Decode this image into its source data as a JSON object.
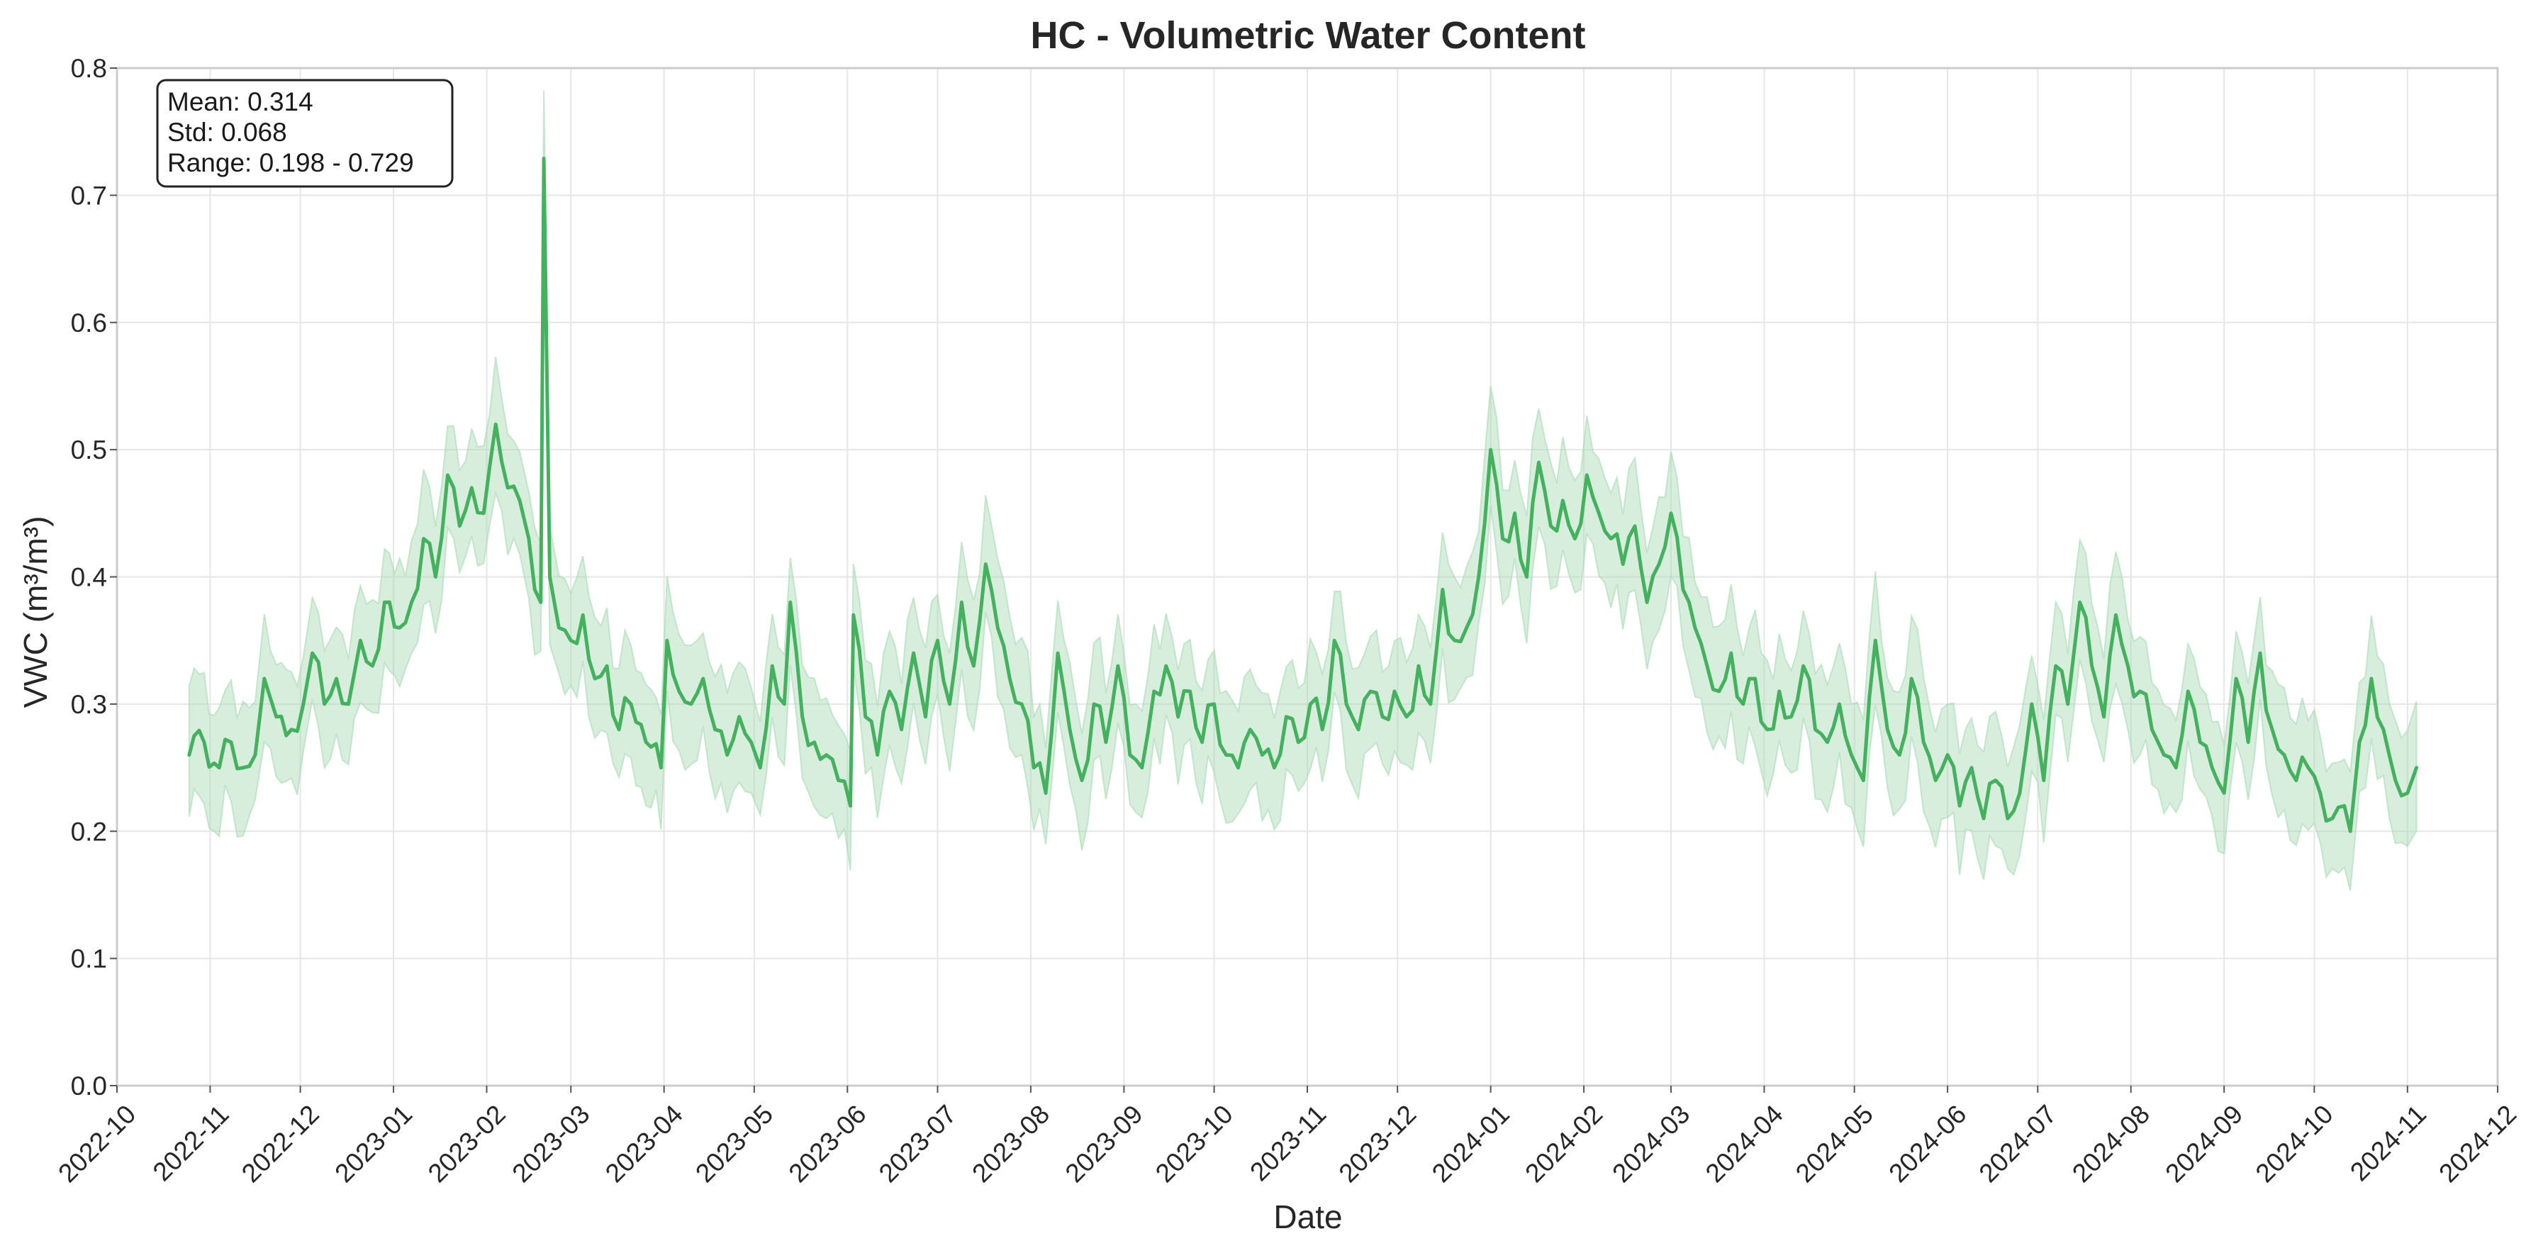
{
  "chart_data": {
    "type": "line",
    "title": "HC - Volumetric Water Content",
    "xlabel": "Date",
    "ylabel": "VWC (m³/m³)",
    "ylim": [
      0.0,
      0.8
    ],
    "xlim": [
      "2022-10-01",
      "2024-12-01"
    ],
    "grid": true,
    "y_ticks": [
      "0.0",
      "0.1",
      "0.2",
      "0.3",
      "0.4",
      "0.5",
      "0.6",
      "0.7",
      "0.8"
    ],
    "x_ticks": [
      "2022-10",
      "2022-11",
      "2022-12",
      "2023-01",
      "2023-02",
      "2023-03",
      "2023-04",
      "2023-05",
      "2023-06",
      "2023-07",
      "2023-08",
      "2023-09",
      "2023-10",
      "2023-11",
      "2023-12",
      "2024-01",
      "2024-02",
      "2024-03",
      "2024-04",
      "2024-05",
      "2024-06",
      "2024-07",
      "2024-08",
      "2024-09",
      "2024-10",
      "2024-11",
      "2024-12"
    ],
    "stats_box": [
      "Mean: 0.314",
      "Std: 0.068",
      "Range: 0.198 - 0.729"
    ],
    "colors": {
      "line": "#44b15f",
      "band": "#a6dab4",
      "band_opacity": 0.45
    },
    "series": [
      {
        "values": [
          [
            "2022-10-25",
            0.26
          ],
          [
            "2022-10-30",
            0.27
          ],
          [
            "2022-11-04",
            0.25
          ],
          [
            "2022-11-08",
            0.27
          ],
          [
            "2022-11-12",
            0.25
          ],
          [
            "2022-11-16",
            0.26
          ],
          [
            "2022-11-19",
            0.32
          ],
          [
            "2022-11-23",
            0.29
          ],
          [
            "2022-11-28",
            0.28
          ],
          [
            "2022-12-02",
            0.3
          ],
          [
            "2022-12-05",
            0.34
          ],
          [
            "2022-12-09",
            0.3
          ],
          [
            "2022-12-13",
            0.32
          ],
          [
            "2022-12-17",
            0.3
          ],
          [
            "2022-12-21",
            0.35
          ],
          [
            "2022-12-25",
            0.33
          ],
          [
            "2022-12-29",
            0.38
          ],
          [
            "2023-01-03",
            0.36
          ],
          [
            "2023-01-07",
            0.38
          ],
          [
            "2023-01-11",
            0.43
          ],
          [
            "2023-01-15",
            0.4
          ],
          [
            "2023-01-19",
            0.48
          ],
          [
            "2023-01-23",
            0.44
          ],
          [
            "2023-01-27",
            0.47
          ],
          [
            "2023-01-31",
            0.45
          ],
          [
            "2023-02-04",
            0.52
          ],
          [
            "2023-02-08",
            0.47
          ],
          [
            "2023-02-12",
            0.46
          ],
          [
            "2023-02-15",
            0.43
          ],
          [
            "2023-02-17",
            0.39
          ],
          [
            "2023-02-19",
            0.38
          ],
          [
            "2023-02-20",
            0.729
          ],
          [
            "2023-02-22",
            0.4
          ],
          [
            "2023-02-25",
            0.36
          ],
          [
            "2023-03-01",
            0.35
          ],
          [
            "2023-03-05",
            0.37
          ],
          [
            "2023-03-09",
            0.32
          ],
          [
            "2023-03-13",
            0.33
          ],
          [
            "2023-03-17",
            0.28
          ],
          [
            "2023-03-21",
            0.3
          ],
          [
            "2023-03-26",
            0.27
          ],
          [
            "2023-03-31",
            0.25
          ],
          [
            "2023-04-02",
            0.35
          ],
          [
            "2023-04-06",
            0.31
          ],
          [
            "2023-04-10",
            0.3
          ],
          [
            "2023-04-14",
            0.32
          ],
          [
            "2023-04-18",
            0.28
          ],
          [
            "2023-04-22",
            0.26
          ],
          [
            "2023-04-26",
            0.29
          ],
          [
            "2023-04-30",
            0.27
          ],
          [
            "2023-05-03",
            0.25
          ],
          [
            "2023-05-07",
            0.33
          ],
          [
            "2023-05-11",
            0.3
          ],
          [
            "2023-05-13",
            0.38
          ],
          [
            "2023-05-17",
            0.29
          ],
          [
            "2023-05-21",
            0.27
          ],
          [
            "2023-05-25",
            0.26
          ],
          [
            "2023-05-29",
            0.24
          ],
          [
            "2023-06-02",
            0.22
          ],
          [
            "2023-06-03",
            0.37
          ],
          [
            "2023-06-07",
            0.29
          ],
          [
            "2023-06-11",
            0.26
          ],
          [
            "2023-06-15",
            0.31
          ],
          [
            "2023-06-19",
            0.28
          ],
          [
            "2023-06-23",
            0.34
          ],
          [
            "2023-06-27",
            0.29
          ],
          [
            "2023-07-01",
            0.35
          ],
          [
            "2023-07-05",
            0.3
          ],
          [
            "2023-07-09",
            0.38
          ],
          [
            "2023-07-13",
            0.33
          ],
          [
            "2023-07-17",
            0.41
          ],
          [
            "2023-07-21",
            0.36
          ],
          [
            "2023-07-25",
            0.32
          ],
          [
            "2023-07-29",
            0.3
          ],
          [
            "2023-08-02",
            0.25
          ],
          [
            "2023-08-06",
            0.23
          ],
          [
            "2023-08-10",
            0.34
          ],
          [
            "2023-08-14",
            0.28
          ],
          [
            "2023-08-18",
            0.24
          ],
          [
            "2023-08-22",
            0.3
          ],
          [
            "2023-08-26",
            0.27
          ],
          [
            "2023-08-30",
            0.33
          ],
          [
            "2023-09-03",
            0.26
          ],
          [
            "2023-09-07",
            0.25
          ],
          [
            "2023-09-11",
            0.31
          ],
          [
            "2023-09-15",
            0.33
          ],
          [
            "2023-09-19",
            0.29
          ],
          [
            "2023-09-23",
            0.31
          ],
          [
            "2023-09-27",
            0.27
          ],
          [
            "2023-10-01",
            0.3
          ],
          [
            "2023-10-05",
            0.26
          ],
          [
            "2023-10-09",
            0.25
          ],
          [
            "2023-10-13",
            0.28
          ],
          [
            "2023-10-17",
            0.26
          ],
          [
            "2023-10-21",
            0.25
          ],
          [
            "2023-10-25",
            0.29
          ],
          [
            "2023-10-29",
            0.27
          ],
          [
            "2023-11-02",
            0.3
          ],
          [
            "2023-11-06",
            0.28
          ],
          [
            "2023-11-10",
            0.35
          ],
          [
            "2023-11-14",
            0.3
          ],
          [
            "2023-11-18",
            0.28
          ],
          [
            "2023-11-22",
            0.31
          ],
          [
            "2023-11-26",
            0.29
          ],
          [
            "2023-11-30",
            0.31
          ],
          [
            "2023-12-04",
            0.29
          ],
          [
            "2023-12-08",
            0.33
          ],
          [
            "2023-12-12",
            0.3
          ],
          [
            "2023-12-16",
            0.39
          ],
          [
            "2023-12-20",
            0.35
          ],
          [
            "2023-12-24",
            0.36
          ],
          [
            "2023-12-28",
            0.4
          ],
          [
            "2024-01-01",
            0.5
          ],
          [
            "2024-01-05",
            0.43
          ],
          [
            "2024-01-09",
            0.45
          ],
          [
            "2024-01-13",
            0.4
          ],
          [
            "2024-01-17",
            0.49
          ],
          [
            "2024-01-21",
            0.44
          ],
          [
            "2024-01-25",
            0.46
          ],
          [
            "2024-01-29",
            0.43
          ],
          [
            "2024-02-02",
            0.48
          ],
          [
            "2024-02-06",
            0.45
          ],
          [
            "2024-02-10",
            0.43
          ],
          [
            "2024-02-14",
            0.41
          ],
          [
            "2024-02-18",
            0.44
          ],
          [
            "2024-02-22",
            0.38
          ],
          [
            "2024-02-26",
            0.41
          ],
          [
            "2024-03-01",
            0.45
          ],
          [
            "2024-03-05",
            0.39
          ],
          [
            "2024-03-09",
            0.36
          ],
          [
            "2024-03-13",
            0.33
          ],
          [
            "2024-03-17",
            0.31
          ],
          [
            "2024-03-21",
            0.34
          ],
          [
            "2024-03-25",
            0.3
          ],
          [
            "2024-03-29",
            0.32
          ],
          [
            "2024-04-02",
            0.28
          ],
          [
            "2024-04-06",
            0.31
          ],
          [
            "2024-04-10",
            0.29
          ],
          [
            "2024-04-14",
            0.33
          ],
          [
            "2024-04-18",
            0.28
          ],
          [
            "2024-04-22",
            0.27
          ],
          [
            "2024-04-26",
            0.3
          ],
          [
            "2024-04-30",
            0.26
          ],
          [
            "2024-05-04",
            0.24
          ],
          [
            "2024-05-08",
            0.35
          ],
          [
            "2024-05-12",
            0.28
          ],
          [
            "2024-05-16",
            0.26
          ],
          [
            "2024-05-20",
            0.32
          ],
          [
            "2024-05-24",
            0.27
          ],
          [
            "2024-05-28",
            0.24
          ],
          [
            "2024-06-01",
            0.26
          ],
          [
            "2024-06-05",
            0.22
          ],
          [
            "2024-06-09",
            0.25
          ],
          [
            "2024-06-13",
            0.21
          ],
          [
            "2024-06-17",
            0.24
          ],
          [
            "2024-06-21",
            0.21
          ],
          [
            "2024-06-25",
            0.23
          ],
          [
            "2024-06-29",
            0.3
          ],
          [
            "2024-07-03",
            0.24
          ],
          [
            "2024-07-07",
            0.33
          ],
          [
            "2024-07-11",
            0.3
          ],
          [
            "2024-07-15",
            0.38
          ],
          [
            "2024-07-19",
            0.33
          ],
          [
            "2024-07-23",
            0.29
          ],
          [
            "2024-07-27",
            0.37
          ],
          [
            "2024-07-31",
            0.33
          ],
          [
            "2024-08-04",
            0.31
          ],
          [
            "2024-08-08",
            0.28
          ],
          [
            "2024-08-12",
            0.26
          ],
          [
            "2024-08-16",
            0.25
          ],
          [
            "2024-08-20",
            0.31
          ],
          [
            "2024-08-24",
            0.27
          ],
          [
            "2024-08-28",
            0.25
          ],
          [
            "2024-09-01",
            0.23
          ],
          [
            "2024-09-05",
            0.32
          ],
          [
            "2024-09-09",
            0.27
          ],
          [
            "2024-09-13",
            0.34
          ],
          [
            "2024-09-17",
            0.28
          ],
          [
            "2024-09-21",
            0.26
          ],
          [
            "2024-09-25",
            0.24
          ],
          [
            "2024-09-29",
            0.25
          ],
          [
            "2024-10-03",
            0.23
          ],
          [
            "2024-10-07",
            0.21
          ],
          [
            "2024-10-11",
            0.22
          ],
          [
            "2024-10-13",
            0.2
          ],
          [
            "2024-10-16",
            0.27
          ],
          [
            "2024-10-20",
            0.32
          ],
          [
            "2024-10-24",
            0.28
          ],
          [
            "2024-10-28",
            0.24
          ],
          [
            "2024-11-01",
            0.23
          ],
          [
            "2024-11-04",
            0.25
          ]
        ]
      }
    ]
  }
}
